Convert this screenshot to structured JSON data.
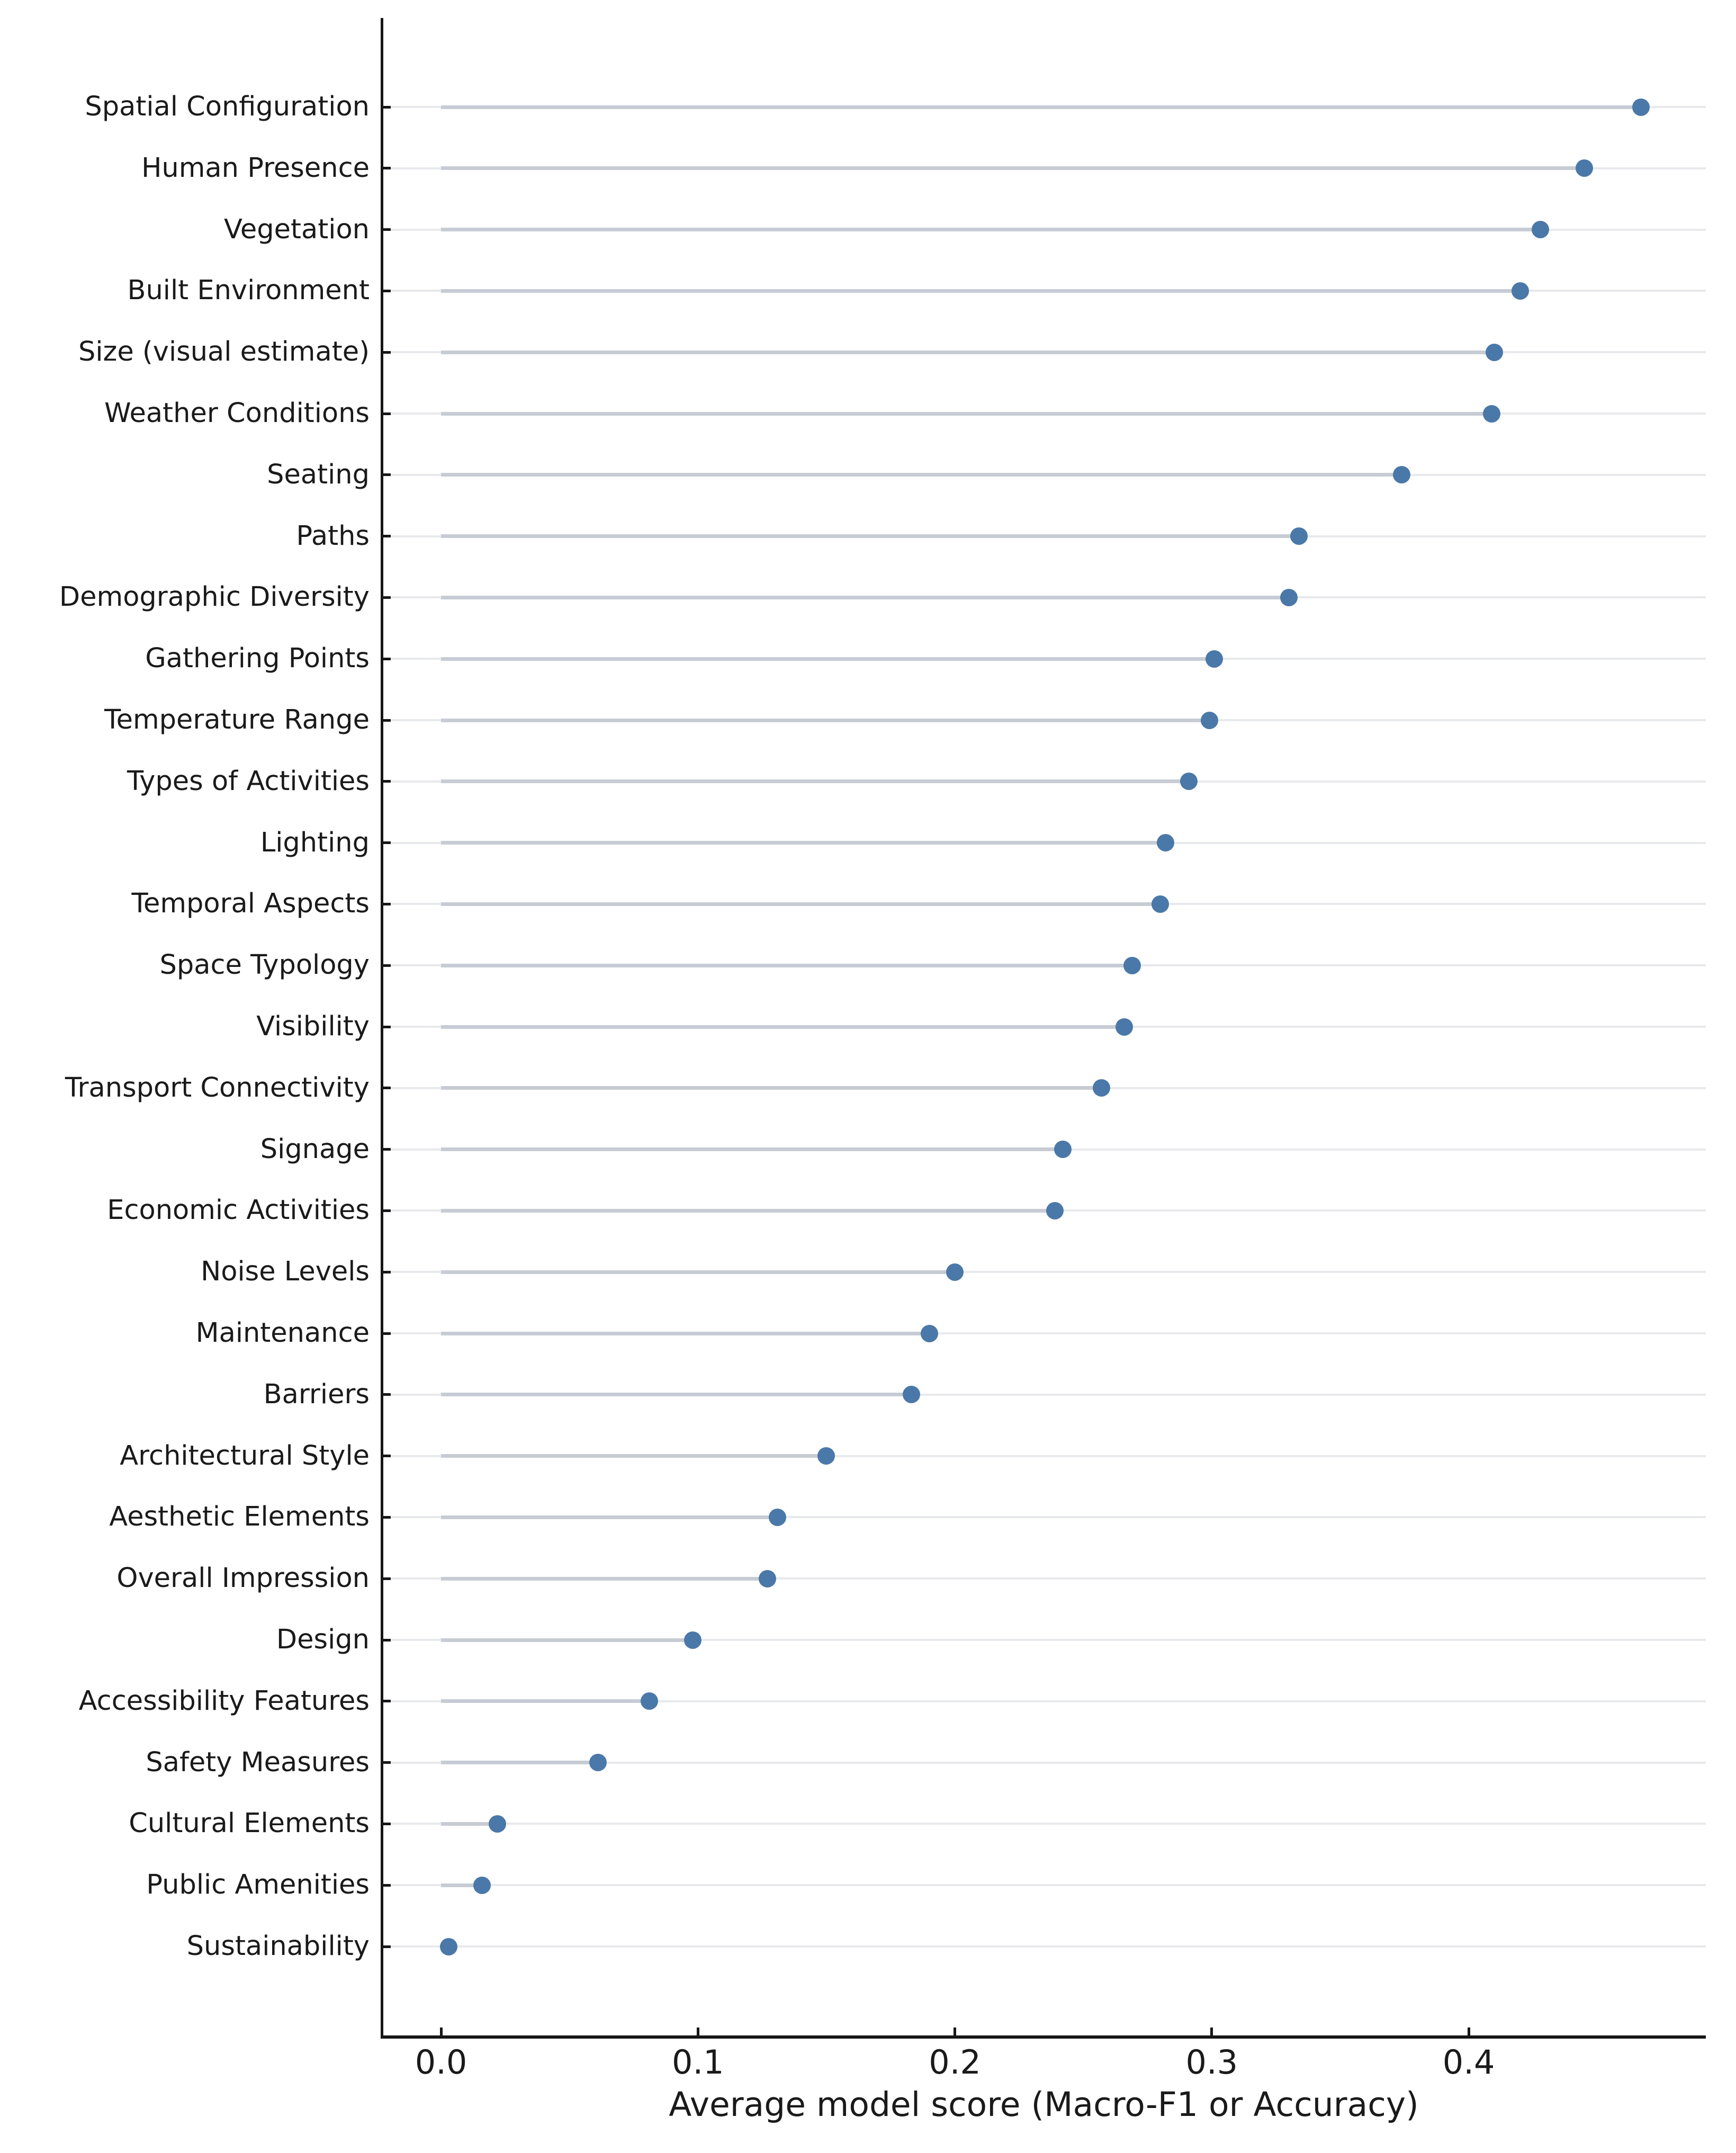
{
  "chart_data": {
    "type": "scatter",
    "variant": "lollipop-dot-plot",
    "xlabel": "Average model score (Macro-F1 or Accuracy)",
    "categories": [
      "Spatial Configuration",
      "Human Presence",
      "Vegetation",
      "Built Environment",
      "Size (visual estimate)",
      "Weather Conditions",
      "Seating",
      "Paths",
      "Demographic Diversity",
      "Gathering Points",
      "Temperature Range",
      "Types of Activities",
      "Lighting",
      "Temporal Aspects",
      "Space Typology",
      "Visibility",
      "Transport Connectivity",
      "Signage",
      "Economic Activities",
      "Noise Levels",
      "Maintenance",
      "Barriers",
      "Architectural Style",
      "Aesthetic Elements",
      "Overall Impression",
      "Design",
      "Accessibility Features",
      "Safety Measures",
      "Cultural Elements",
      "Public Amenities",
      "Sustainability"
    ],
    "values": [
      0.467,
      0.445,
      0.428,
      0.42,
      0.41,
      0.409,
      0.374,
      0.334,
      0.33,
      0.301,
      0.299,
      0.291,
      0.282,
      0.28,
      0.269,
      0.266,
      0.257,
      0.242,
      0.239,
      0.2,
      0.19,
      0.183,
      0.15,
      0.131,
      0.127,
      0.098,
      0.081,
      0.061,
      0.022,
      0.016,
      0.003
    ],
    "xlim": [
      -0.0231,
      0.4923
    ],
    "xticks": [
      0.0,
      0.1,
      0.2,
      0.3,
      0.4
    ],
    "xtick_labels": [
      "0.0",
      "0.1",
      "0.2",
      "0.3",
      "0.4"
    ],
    "grid": "horizontal light line per category, stem from 0 to dot",
    "legend": "none",
    "colors": {
      "dot": "#4a78a8",
      "stem": "#c7cbd3",
      "gridline": "#e8e9ec",
      "axis": "#161616",
      "text": "#1a1a1a",
      "background": "#ffffff"
    }
  }
}
